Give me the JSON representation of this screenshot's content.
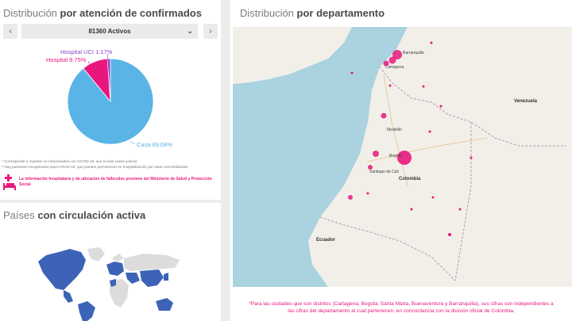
{
  "attention": {
    "title_prefix": "Distribución ",
    "title_bold": "por atención de confirmados",
    "prev_icon": "chevron-left-icon",
    "next_icon": "chevron-right-icon",
    "selected_option": "81360 Activos",
    "notes": [
      "* Corresponde a muertes no relacionadas con COVID-19, aun si eran casos activos.",
      "**Hay pacientes recuperados para COVID-19, que pueden permanecer en hospitalización por otras comorbilidades"
    ],
    "health_note": "La información hospitalaria y de ubicación de fallecidos proviene del Ministerio de Salud y Protección Social",
    "colors": {
      "casa": "#5ab4e5",
      "hospital": "#e8177e",
      "uci": "#8e44c8",
      "accent": "#e8177e"
    }
  },
  "chart_data": {
    "type": "pie",
    "labels": [
      "Casa",
      "Hospital",
      "Hospital UCI"
    ],
    "label_texts": [
      "Casa 89.08%",
      "Hospital 9.75%",
      "Hospital UCI 1.17%"
    ],
    "values": [
      89.08,
      9.75,
      1.17
    ],
    "colors": [
      "#5ab4e5",
      "#e8177e",
      "#8e44c8"
    ]
  },
  "countries": {
    "title_prefix": "Países ",
    "title_bold": "con circulación activa",
    "colors": {
      "active": "#3c63b8",
      "inactive": "#dcdcdc"
    }
  },
  "department": {
    "title_prefix": "Distribución ",
    "title_bold": "por departamento",
    "map_labels": {
      "barranquilla": "Barranquilla",
      "cartagena": "Cartagena",
      "medellin": "Medellín",
      "bogota": "Bogotá",
      "cali": "Santiago de Cali",
      "colombia": "Colombia",
      "venezuela": "Venezuela",
      "ecuador": "Ecuador"
    },
    "footnote": "*Para las ciudades que son distritos (Cartagena, Bogotá, Santa Marta, Buenaventura y Barranquilla), sus cifras son independientes a las cifras del departamento al cual pertenecen, en concordancia con la división oficial de Colombia.",
    "bubble_color": "#e8177e"
  }
}
